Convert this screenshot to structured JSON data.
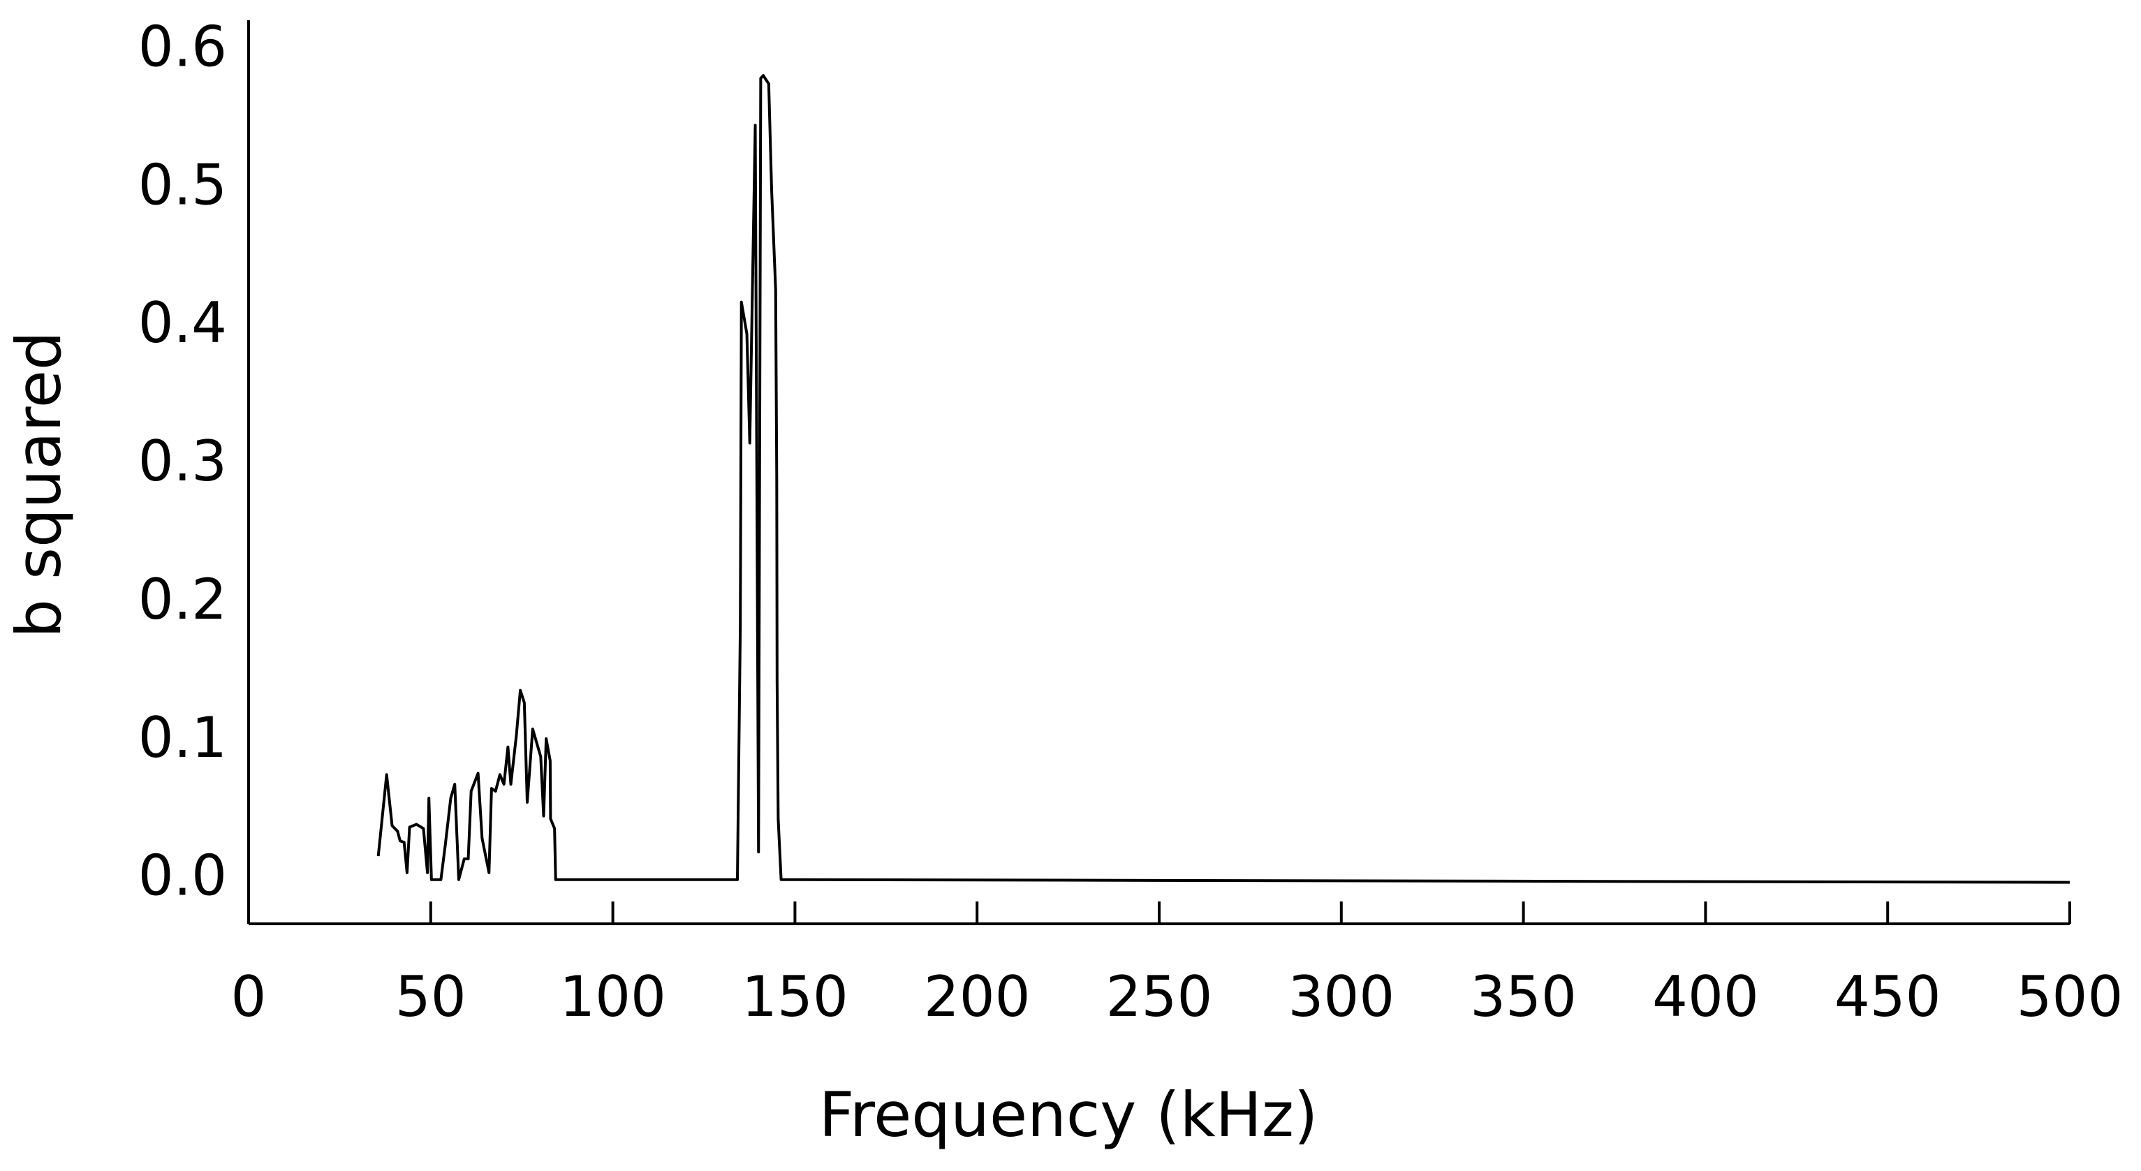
{
  "chart_data": {
    "type": "line",
    "xlabel": "Frequency (kHz)",
    "ylabel": "b squared",
    "x": [
      35.6,
      37.9,
      39.4,
      40.9,
      41.6,
      42.7,
      43.5,
      44.2,
      46.1,
      48,
      49.1,
      49.5,
      50.2,
      52.8,
      54,
      55.5,
      56.6,
      57.7,
      59.2,
      60.3,
      61.1,
      63,
      64.1,
      66,
      66.7,
      67.8,
      69,
      70.1,
      71.2,
      72,
      73.5,
      74.6,
      75.7,
      76.5,
      78,
      79.1,
      80.2,
      81,
      81.7,
      82.8,
      82.9,
      84,
      84.3,
      134.2,
      135,
      135.3,
      136.8,
      137.6,
      139.1,
      140,
      140.6,
      141.3,
      142.8,
      143.6,
      144.7,
      145,
      145.1,
      145.4,
      146.2,
      500
    ],
    "values": [
      0.017,
      0.076,
      0.039,
      0.035,
      0.028,
      0.027,
      0.005,
      0.038,
      0.04,
      0.037,
      0.005,
      0.059,
      0,
      0,
      0.025,
      0.059,
      0.069,
      0,
      0.015,
      0.015,
      0.064,
      0.077,
      0.03,
      0.005,
      0.066,
      0.064,
      0.076,
      0.069,
      0.096,
      0.069,
      0.104,
      0.137,
      0.128,
      0.056,
      0.109,
      0.099,
      0.089,
      0.046,
      0.102,
      0.086,
      0.044,
      0.037,
      0,
      0,
      0.183,
      0.418,
      0.395,
      0.316,
      0.546,
      0.02,
      0.58,
      0.582,
      0.576,
      0.499,
      0.427,
      0.291,
      0.143,
      0.044,
      0,
      -0.002
    ],
    "color": "#000000",
    "xlim": [
      0,
      500
    ],
    "xticks": [
      0,
      50,
      100,
      150,
      200,
      250,
      300,
      350,
      400,
      450,
      500
    ],
    "ylim": [
      -0.032,
      0.622
    ],
    "yticks": [
      {
        "value": 0,
        "label": "0.0"
      },
      0.1,
      0.2,
      0.3,
      0.4,
      0.5,
      0.6
    ]
  }
}
